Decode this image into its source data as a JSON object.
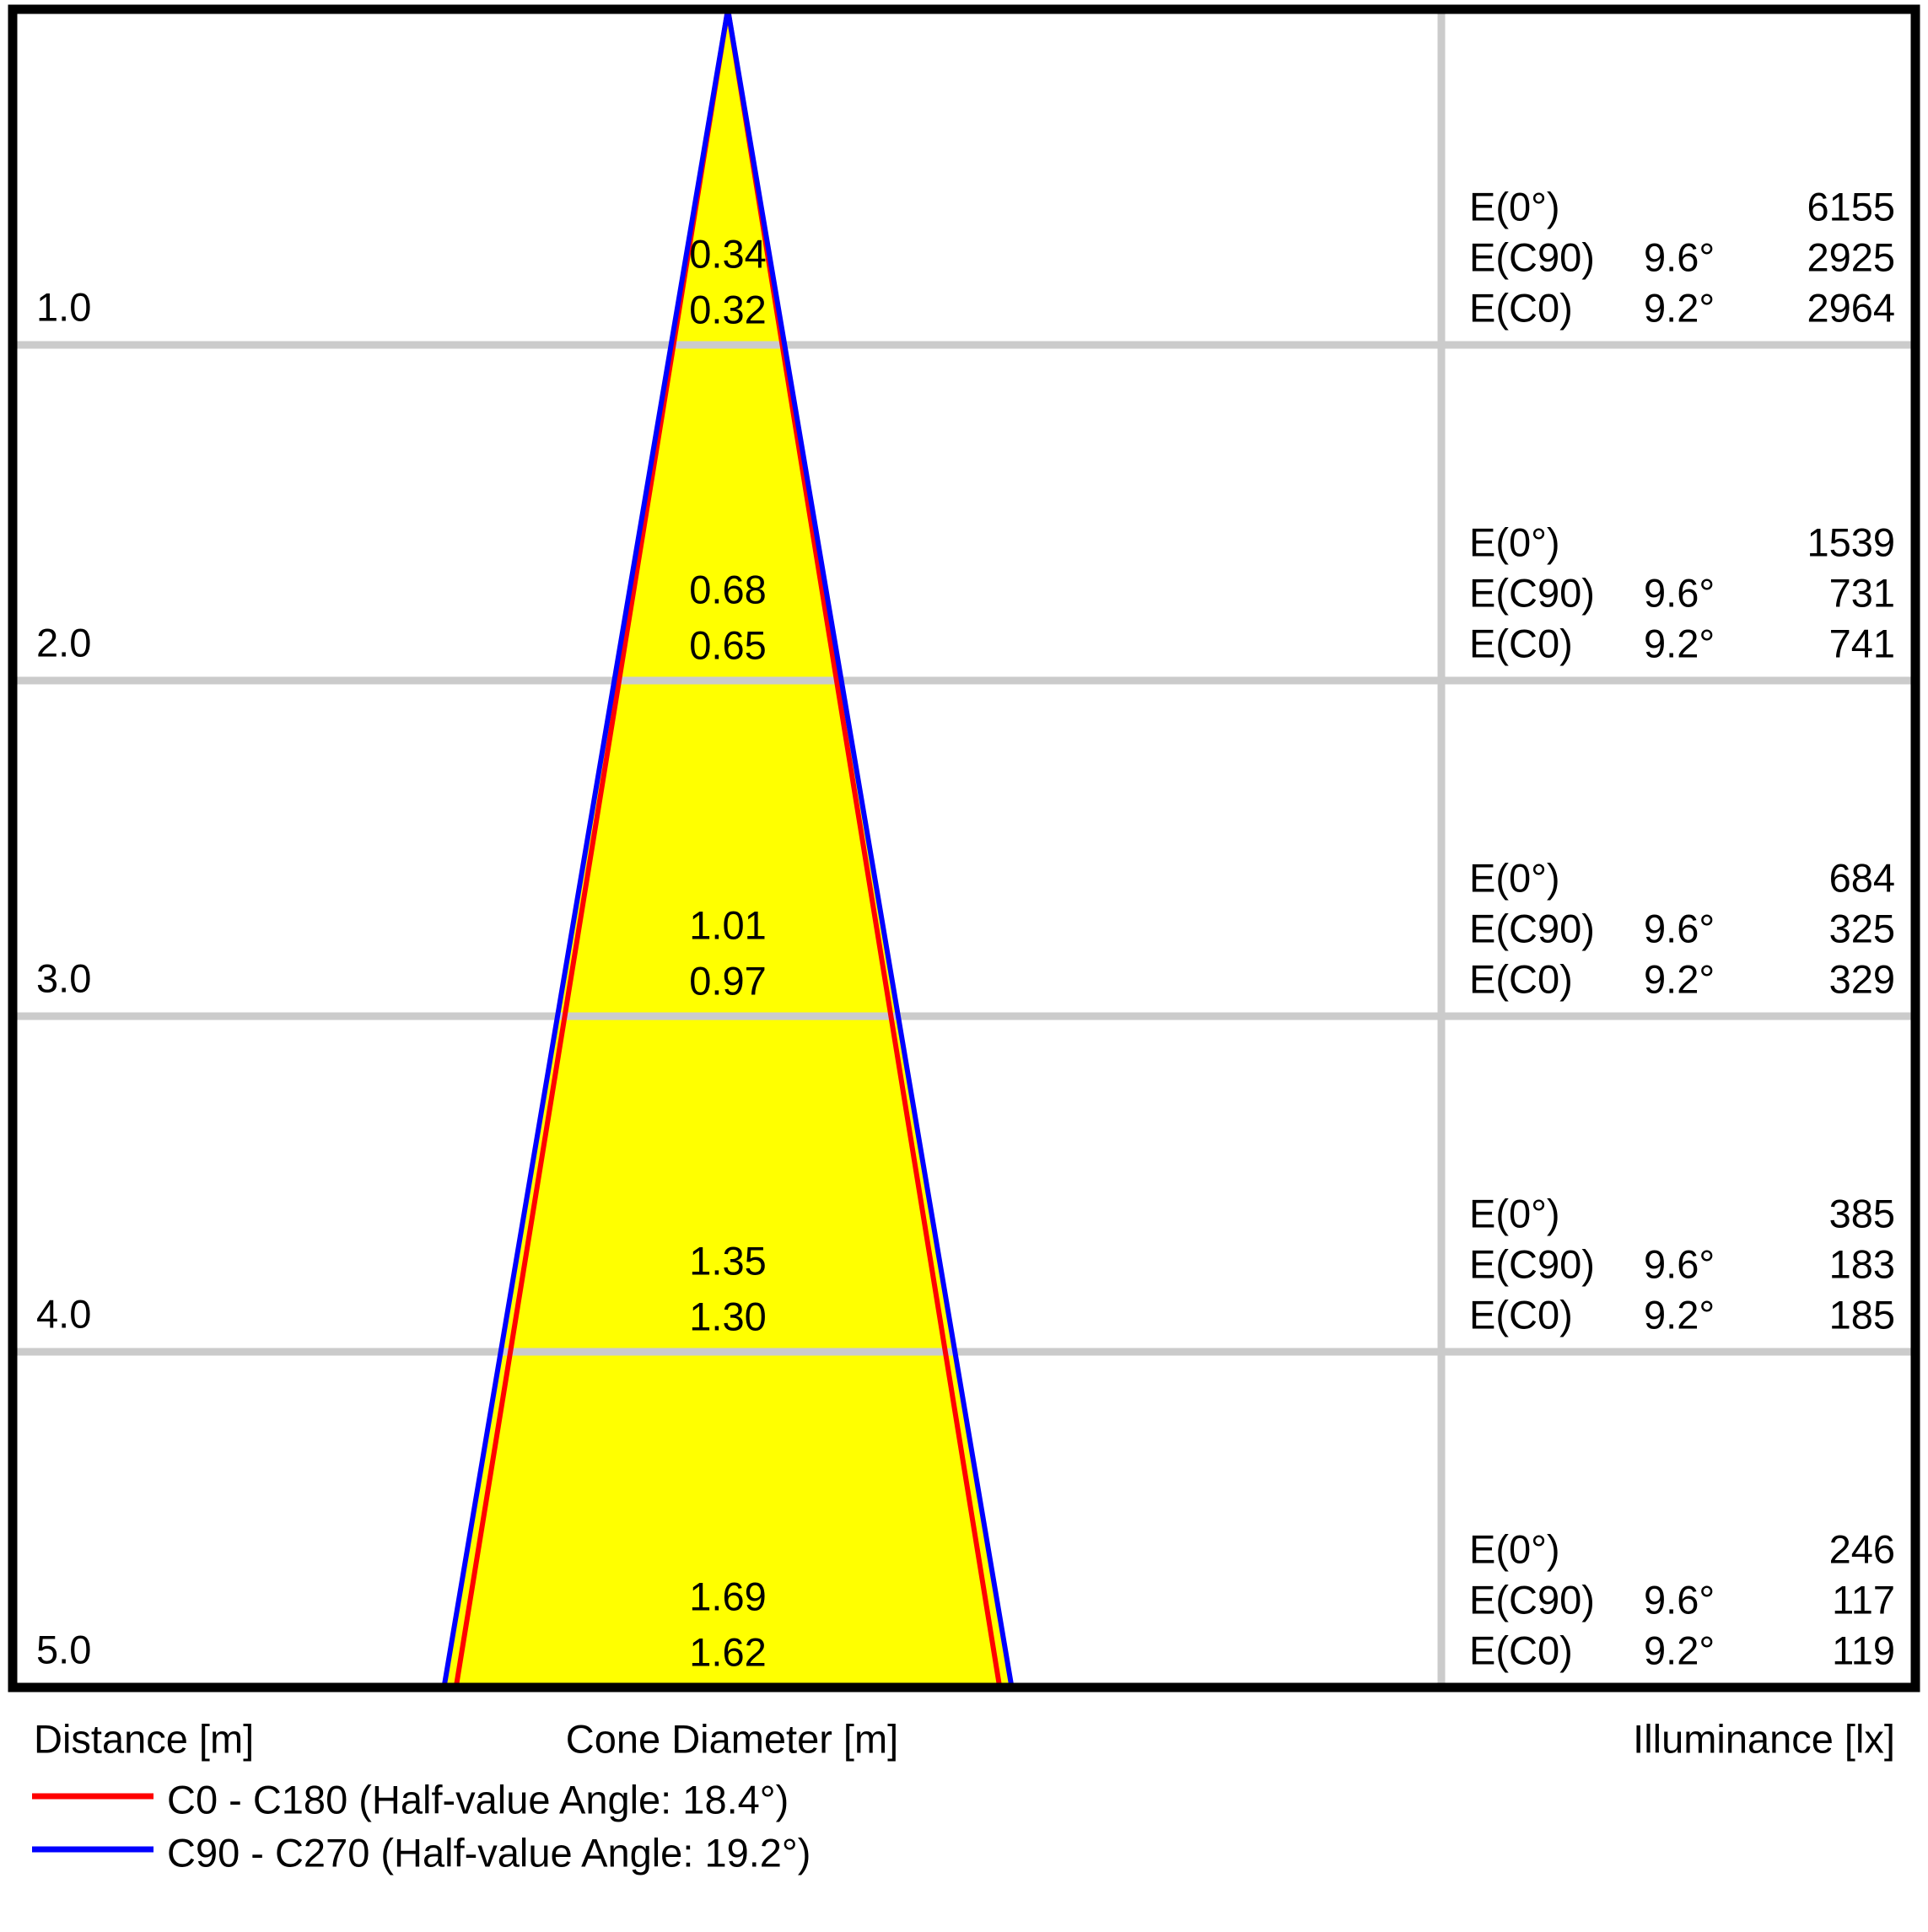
{
  "labels": {
    "e0": "E(0°)",
    "ec90": "E(C90)",
    "ec0": "E(C0)"
  },
  "rows": [
    {
      "distance": "1.0",
      "cone_c90": "0.34",
      "cone_c0": "0.32",
      "e0": "6155",
      "a90": "9.6°",
      "e90": "2925",
      "a0": "9.2°",
      "ec0": "2964"
    },
    {
      "distance": "2.0",
      "cone_c90": "0.68",
      "cone_c0": "0.65",
      "e0": "1539",
      "a90": "9.6°",
      "e90": "731",
      "a0": "9.2°",
      "ec0": "741"
    },
    {
      "distance": "3.0",
      "cone_c90": "1.01",
      "cone_c0": "0.97",
      "e0": "684",
      "a90": "9.6°",
      "e90": "325",
      "a0": "9.2°",
      "ec0": "329"
    },
    {
      "distance": "4.0",
      "cone_c90": "1.35",
      "cone_c0": "1.30",
      "e0": "385",
      "a90": "9.6°",
      "e90": "183",
      "a0": "9.2°",
      "ec0": "185"
    },
    {
      "distance": "5.0",
      "cone_c90": "1.69",
      "cone_c0": "1.62",
      "e0": "246",
      "a90": "9.6°",
      "e90": "117",
      "a0": "9.2°",
      "ec0": "119"
    }
  ],
  "footer": {
    "distance": "Distance [m]",
    "cone_diameter": "Cone Diameter [m]",
    "illuminance": "Illuminance [lx]"
  },
  "legend": [
    {
      "label": "C0 - C180 (Half-value Angle: 18.4°)",
      "color": "#ff0000"
    },
    {
      "label": "C90 - C270 (Half-value Angle: 19.2°)",
      "color": "#0000ff"
    }
  ],
  "cone": {
    "fill": "#ffff00",
    "c0_color": "#ff0000",
    "c90_color": "#0000ff",
    "half_angle_c0_deg": 9.2,
    "half_angle_c90_deg": 9.6,
    "max_distance_m": 5
  },
  "chart_data": {
    "type": "area",
    "title": "Light cone diagram (photometric cone chart)",
    "xlabel": "Cone Diameter [m]",
    "ylabel": "Distance [m]",
    "legend_position": "bottom-left",
    "grid": true,
    "series": [
      {
        "name": "C0 - C180 (Half-value Angle: 18.4°)",
        "color": "#ff0000",
        "distances_m": [
          1.0,
          2.0,
          3.0,
          4.0,
          5.0
        ],
        "cone_diameter_m": [
          0.32,
          0.65,
          0.97,
          1.3,
          1.62
        ],
        "illuminance_lx": [
          2964,
          741,
          329,
          185,
          119
        ],
        "beam_half_angle_deg": 9.2
      },
      {
        "name": "C90 - C270 (Half-value Angle: 19.2°)",
        "color": "#0000ff",
        "distances_m": [
          1.0,
          2.0,
          3.0,
          4.0,
          5.0
        ],
        "cone_diameter_m": [
          0.34,
          0.68,
          1.01,
          1.35,
          1.69
        ],
        "illuminance_lx": [
          2925,
          731,
          325,
          183,
          117
        ],
        "beam_half_angle_deg": 9.6
      },
      {
        "name": "E(0°)",
        "distances_m": [
          1.0,
          2.0,
          3.0,
          4.0,
          5.0
        ],
        "illuminance_lx": [
          6155,
          1539,
          684,
          385,
          246
        ]
      }
    ],
    "ylim": [
      0,
      5
    ]
  }
}
